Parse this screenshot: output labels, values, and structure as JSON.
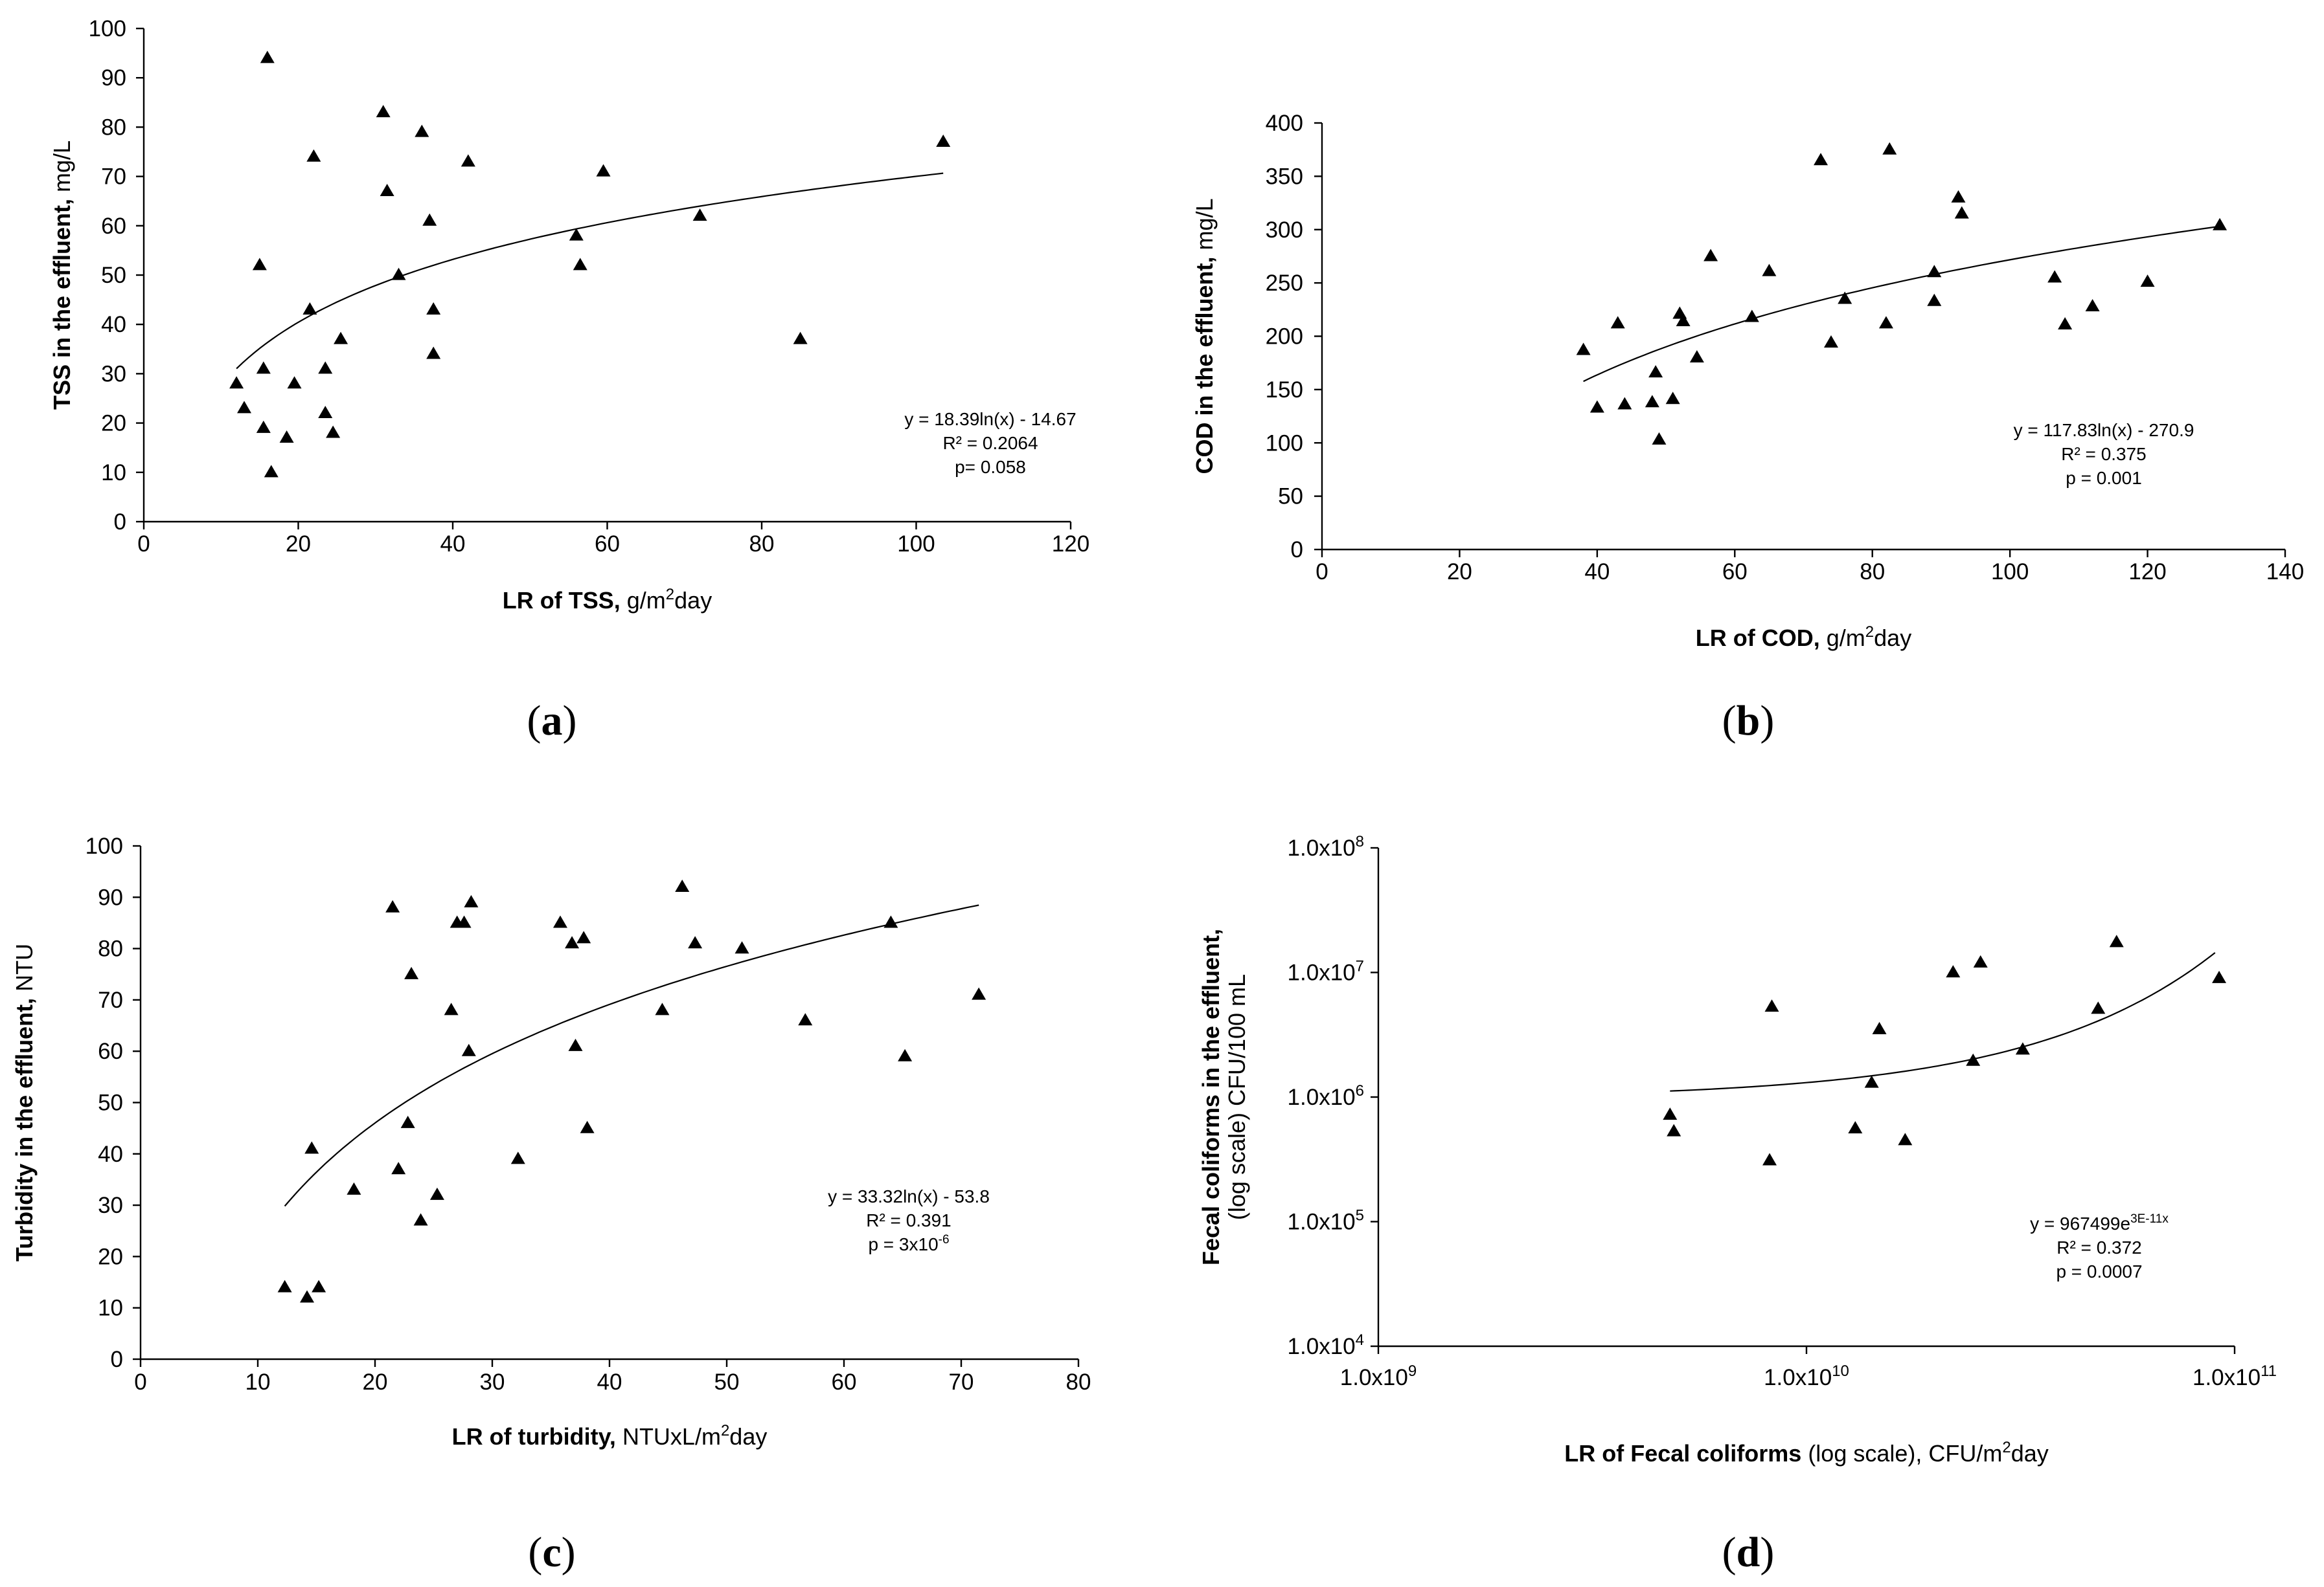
{
  "chart_data": [
    {
      "type": "scatter",
      "panel": "(a)",
      "panel_letter": "a",
      "xlabel_bold": "LR of TSS,",
      "xlabel_rest": " g/m",
      "xlabel_sup": "2",
      "xlabel_tail": "day",
      "ylabel_bold": "TSS in the effluent,",
      "ylabel_rest": " mg/L",
      "ylabel2": "",
      "xlim": [
        0,
        120
      ],
      "ylim": [
        0,
        100
      ],
      "xticks": [
        0,
        20,
        40,
        60,
        80,
        100,
        120
      ],
      "yticks": [
        0,
        10,
        20,
        30,
        40,
        50,
        60,
        70,
        80,
        90,
        100
      ],
      "xtick_labels": [
        "0",
        "20",
        "40",
        "60",
        "80",
        "100",
        "120"
      ],
      "ytick_labels": [
        "0",
        "10",
        "20",
        "30",
        "40",
        "50",
        "60",
        "70",
        "80",
        "90",
        "100"
      ],
      "x_scale": "linear",
      "y_scale": "linear",
      "grid": false,
      "legend": "none",
      "marker": "triangle",
      "points": [
        [
          12,
          28
        ],
        [
          13,
          23
        ],
        [
          15,
          52
        ],
        [
          15.5,
          31
        ],
        [
          15.5,
          19
        ],
        [
          16,
          94
        ],
        [
          16.5,
          10
        ],
        [
          18.5,
          17
        ],
        [
          19.5,
          28
        ],
        [
          21.5,
          43
        ],
        [
          22,
          74
        ],
        [
          23.5,
          31
        ],
        [
          23.5,
          22
        ],
        [
          24.5,
          18
        ],
        [
          25.5,
          37
        ],
        [
          31,
          83
        ],
        [
          31.5,
          67
        ],
        [
          33,
          50
        ],
        [
          36,
          79
        ],
        [
          37,
          61
        ],
        [
          37.5,
          34
        ],
        [
          37.5,
          43
        ],
        [
          42,
          73
        ],
        [
          56,
          58
        ],
        [
          56.5,
          52
        ],
        [
          59.5,
          71
        ],
        [
          72,
          62
        ],
        [
          85,
          37
        ],
        [
          103.5,
          77
        ]
      ],
      "trend": {
        "kind": "log",
        "a": 18.39,
        "b": -14.67,
        "x_range": [
          12,
          103.5
        ]
      },
      "annotation": [
        "y = 18.39ln(x) - 14.67",
        "R² = 0.2064",
        "p= 0.058"
      ]
    },
    {
      "type": "scatter",
      "panel": "(b)",
      "panel_letter": "b",
      "xlabel_bold": "LR of COD,",
      "xlabel_rest": " g/m",
      "xlabel_sup": "2",
      "xlabel_tail": "day",
      "ylabel_bold": "COD in the effluent,",
      "ylabel_rest": " mg/L",
      "ylabel2": "",
      "xlim": [
        0,
        140
      ],
      "ylim": [
        0,
        400
      ],
      "xticks": [
        0,
        20,
        40,
        60,
        80,
        100,
        120,
        140
      ],
      "yticks": [
        0,
        50,
        100,
        150,
        200,
        250,
        300,
        350,
        400
      ],
      "xtick_labels": [
        "0",
        "20",
        "40",
        "60",
        "80",
        "100",
        "120",
        "140"
      ],
      "ytick_labels": [
        "0",
        "50",
        "100",
        "150",
        "200",
        "250",
        "300",
        "350",
        "400"
      ],
      "x_scale": "linear",
      "y_scale": "linear",
      "grid": false,
      "legend": "none",
      "marker": "triangle",
      "points": [
        [
          38,
          187
        ],
        [
          40,
          133
        ],
        [
          43,
          212
        ],
        [
          44,
          136
        ],
        [
          48,
          138
        ],
        [
          48.5,
          166
        ],
        [
          49,
          103
        ],
        [
          51,
          141
        ],
        [
          52,
          221
        ],
        [
          52.5,
          214
        ],
        [
          54.5,
          180
        ],
        [
          56.5,
          275
        ],
        [
          62.5,
          218
        ],
        [
          65,
          261
        ],
        [
          72.5,
          365
        ],
        [
          74,
          194
        ],
        [
          76,
          235
        ],
        [
          82,
          212
        ],
        [
          82.5,
          375
        ],
        [
          89,
          260
        ],
        [
          89,
          233
        ],
        [
          92.5,
          330
        ],
        [
          93,
          315
        ],
        [
          106.5,
          255
        ],
        [
          108,
          211
        ],
        [
          112,
          228
        ],
        [
          120,
          251
        ],
        [
          130.5,
          304
        ]
      ],
      "trend": {
        "kind": "log",
        "a": 117.83,
        "b": -270.9,
        "x_range": [
          38,
          130.5
        ]
      },
      "annotation": [
        "y = 117.83ln(x) - 270.9",
        "R² = 0.375",
        "p = 0.001"
      ]
    },
    {
      "type": "scatter",
      "panel": "(c)",
      "panel_letter": "c",
      "xlabel_bold": "LR of turbidity,",
      "xlabel_rest": " NTUxL/m",
      "xlabel_sup": "2",
      "xlabel_tail": "day",
      "ylabel_bold": "Turbidity in the effluent,",
      "ylabel_rest": " NTU",
      "ylabel2": "",
      "xlim": [
        0,
        80
      ],
      "ylim": [
        0,
        100
      ],
      "xticks": [
        0,
        10,
        20,
        30,
        40,
        50,
        60,
        70,
        80
      ],
      "yticks": [
        0,
        10,
        20,
        30,
        40,
        50,
        60,
        70,
        80,
        90,
        100
      ],
      "xtick_labels": [
        "0",
        "10",
        "20",
        "30",
        "40",
        "50",
        "60",
        "70",
        "80"
      ],
      "ytick_labels": [
        "0",
        "10",
        "20",
        "30",
        "40",
        "50",
        "60",
        "70",
        "80",
        "90",
        "100"
      ],
      "x_scale": "linear",
      "y_scale": "linear",
      "grid": false,
      "legend": "none",
      "marker": "triangle",
      "points": [
        [
          12.3,
          14
        ],
        [
          14.2,
          12
        ],
        [
          14.6,
          41
        ],
        [
          15.2,
          14
        ],
        [
          18.2,
          33
        ],
        [
          21.5,
          88
        ],
        [
          22,
          37
        ],
        [
          22.8,
          46
        ],
        [
          23.1,
          75
        ],
        [
          23.9,
          27
        ],
        [
          25.3,
          32
        ],
        [
          26.5,
          68
        ],
        [
          27,
          85
        ],
        [
          27.6,
          85
        ],
        [
          28,
          60
        ],
        [
          28.2,
          89
        ],
        [
          32.2,
          39
        ],
        [
          35.8,
          85
        ],
        [
          36.8,
          81
        ],
        [
          37.1,
          61
        ],
        [
          37.8,
          82
        ],
        [
          38.1,
          45
        ],
        [
          44.5,
          68
        ],
        [
          46.2,
          92
        ],
        [
          47.3,
          81
        ],
        [
          51.3,
          80
        ],
        [
          56.7,
          66
        ],
        [
          64,
          85
        ],
        [
          65.2,
          59
        ],
        [
          71.5,
          71
        ]
      ],
      "trend": {
        "kind": "log",
        "a": 33.32,
        "b": -53.8,
        "x_range": [
          12.3,
          71.5
        ]
      },
      "annotation": [
        "y = 33.32ln(x) - 53.8",
        "R² = 0.391",
        "p = 3x10"
      ],
      "annotation_sup": "-6"
    },
    {
      "type": "scatter",
      "panel": "(d)",
      "panel_letter": "d",
      "xlabel_bold": "LR of Fecal coliforms",
      "xlabel_rest": " (log scale), CFU/m",
      "xlabel_sup": "2",
      "xlabel_tail": "day",
      "ylabel_bold": "Fecal coliforms in the effluent,",
      "ylabel_rest": "",
      "ylabel2": "(log scale) CFU/100 mL",
      "xlim": [
        1000000000,
        100000000000
      ],
      "ylim": [
        10000,
        100000000
      ],
      "xticks": [
        1000000000,
        10000000000,
        100000000000
      ],
      "yticks": [
        10000,
        100000,
        1000000,
        10000000,
        100000000
      ],
      "xtick_labels": [
        "1.0x10^9",
        "1.0x10^10",
        "1.0x10^11"
      ],
      "ytick_labels": [
        "1.0x10^4",
        "1.0x10^5",
        "1.0x10^6",
        "1.0x10^7",
        "1.0x10^8"
      ],
      "x_scale": "log",
      "y_scale": "log",
      "grid": false,
      "legend": "none",
      "marker": "triangle",
      "points": [
        [
          4800000000.0,
          720000
        ],
        [
          4900000000.0,
          530000
        ],
        [
          8200000000.0,
          310000
        ],
        [
          8300000000.0,
          5300000
        ],
        [
          13000000000.0,
          560000
        ],
        [
          14200000000.0,
          1300000
        ],
        [
          14800000000.0,
          3500000
        ],
        [
          17000000000.0,
          450000
        ],
        [
          22000000000.0,
          10000000
        ],
        [
          24500000000.0,
          1950000
        ],
        [
          25500000000.0,
          12000000
        ],
        [
          32000000000.0,
          2400000
        ],
        [
          48000000000.0,
          5100000
        ],
        [
          53000000000.0,
          17500000
        ],
        [
          92000000000.0,
          9000000
        ]
      ],
      "trend": {
        "kind": "exp",
        "a": 967499,
        "b": 3e-11,
        "x_range": [
          4800000000.0,
          90000000000.0
        ]
      },
      "annotation": [
        "y = 967499e",
        "R² = 0.372",
        "p = 0.0007"
      ],
      "annotation_sup": "3E-11x"
    }
  ]
}
